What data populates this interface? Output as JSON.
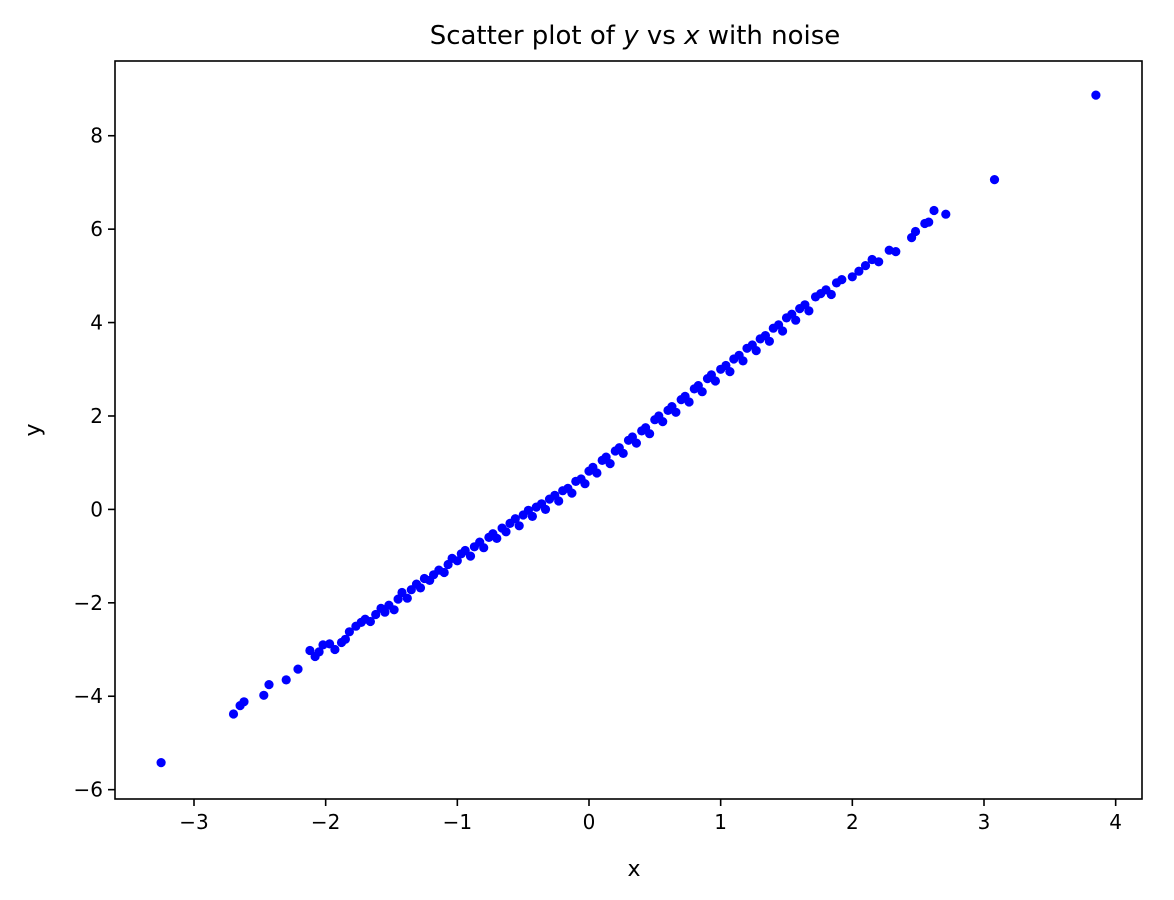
{
  "chart_data": {
    "type": "scatter",
    "title_parts": [
      {
        "text": "Scatter plot of ",
        "italic": false
      },
      {
        "text": "y",
        "italic": true
      },
      {
        "text": " vs ",
        "italic": false
      },
      {
        "text": "x",
        "italic": true
      },
      {
        "text": " with noise",
        "italic": false
      }
    ],
    "xlabel": "x",
    "ylabel": "y",
    "xlim": [
      -3.6,
      4.2
    ],
    "ylim": [
      -6.2,
      9.6
    ],
    "xticks": [
      -3,
      -2,
      -1,
      0,
      1,
      2,
      3,
      4
    ],
    "xtick_labels": [
      "−3",
      "−2",
      "−1",
      "0",
      "1",
      "2",
      "3",
      "4"
    ],
    "yticks": [
      -6,
      -4,
      -2,
      0,
      2,
      4,
      6,
      8
    ],
    "ytick_labels": [
      "−6",
      "−4",
      "−2",
      "0",
      "2",
      "4",
      "6",
      "8"
    ],
    "grid": false,
    "legend": "none",
    "marker_color": "#0000ff",
    "series": [
      {
        "points": [
          [
            -3.25,
            -5.42
          ],
          [
            -2.7,
            -4.38
          ],
          [
            -2.65,
            -4.2
          ],
          [
            -2.62,
            -4.12
          ],
          [
            -2.47,
            -3.98
          ],
          [
            -2.43,
            -3.75
          ],
          [
            -2.3,
            -3.65
          ],
          [
            -2.21,
            -3.42
          ],
          [
            -2.12,
            -3.02
          ],
          [
            -2.08,
            -3.15
          ],
          [
            -2.05,
            -3.05
          ],
          [
            -2.02,
            -2.9
          ],
          [
            -1.97,
            -2.88
          ],
          [
            -1.93,
            -3.0
          ],
          [
            -1.88,
            -2.85
          ],
          [
            -1.85,
            -2.78
          ],
          [
            -1.82,
            -2.62
          ],
          [
            -1.77,
            -2.5
          ],
          [
            -1.73,
            -2.42
          ],
          [
            -1.7,
            -2.35
          ],
          [
            -1.66,
            -2.4
          ],
          [
            -1.62,
            -2.25
          ],
          [
            -1.58,
            -2.12
          ],
          [
            -1.55,
            -2.2
          ],
          [
            -1.52,
            -2.05
          ],
          [
            -1.48,
            -2.15
          ],
          [
            -1.45,
            -1.92
          ],
          [
            -1.42,
            -1.78
          ],
          [
            -1.38,
            -1.9
          ],
          [
            -1.35,
            -1.72
          ],
          [
            -1.31,
            -1.6
          ],
          [
            -1.28,
            -1.68
          ],
          [
            -1.25,
            -1.48
          ],
          [
            -1.21,
            -1.52
          ],
          [
            -1.18,
            -1.4
          ],
          [
            -1.14,
            -1.3
          ],
          [
            -1.1,
            -1.35
          ],
          [
            -1.07,
            -1.18
          ],
          [
            -1.04,
            -1.05
          ],
          [
            -1.0,
            -1.1
          ],
          [
            -0.97,
            -0.95
          ],
          [
            -0.94,
            -0.88
          ],
          [
            -0.9,
            -1.0
          ],
          [
            -0.87,
            -0.8
          ],
          [
            -0.83,
            -0.7
          ],
          [
            -0.8,
            -0.82
          ],
          [
            -0.76,
            -0.6
          ],
          [
            -0.73,
            -0.52
          ],
          [
            -0.7,
            -0.62
          ],
          [
            -0.66,
            -0.4
          ],
          [
            -0.63,
            -0.48
          ],
          [
            -0.6,
            -0.3
          ],
          [
            -0.56,
            -0.2
          ],
          [
            -0.53,
            -0.35
          ],
          [
            -0.5,
            -0.12
          ],
          [
            -0.46,
            -0.02
          ],
          [
            -0.43,
            -0.15
          ],
          [
            -0.4,
            0.05
          ],
          [
            -0.36,
            0.12
          ],
          [
            -0.33,
            0.0
          ],
          [
            -0.3,
            0.22
          ],
          [
            -0.26,
            0.3
          ],
          [
            -0.23,
            0.18
          ],
          [
            -0.2,
            0.4
          ],
          [
            -0.16,
            0.45
          ],
          [
            -0.13,
            0.35
          ],
          [
            -0.1,
            0.6
          ],
          [
            -0.06,
            0.65
          ],
          [
            -0.03,
            0.55
          ],
          [
            0.0,
            0.82
          ],
          [
            0.03,
            0.9
          ],
          [
            0.06,
            0.78
          ],
          [
            0.1,
            1.05
          ],
          [
            0.13,
            1.12
          ],
          [
            0.16,
            0.98
          ],
          [
            0.2,
            1.25
          ],
          [
            0.23,
            1.32
          ],
          [
            0.26,
            1.2
          ],
          [
            0.3,
            1.48
          ],
          [
            0.33,
            1.55
          ],
          [
            0.36,
            1.42
          ],
          [
            0.4,
            1.68
          ],
          [
            0.43,
            1.75
          ],
          [
            0.46,
            1.62
          ],
          [
            0.5,
            1.92
          ],
          [
            0.53,
            2.0
          ],
          [
            0.56,
            1.88
          ],
          [
            0.6,
            2.12
          ],
          [
            0.63,
            2.2
          ],
          [
            0.66,
            2.08
          ],
          [
            0.7,
            2.35
          ],
          [
            0.73,
            2.42
          ],
          [
            0.76,
            2.3
          ],
          [
            0.8,
            2.58
          ],
          [
            0.83,
            2.65
          ],
          [
            0.86,
            2.52
          ],
          [
            0.9,
            2.8
          ],
          [
            0.93,
            2.88
          ],
          [
            0.96,
            2.75
          ],
          [
            1.0,
            3.0
          ],
          [
            1.04,
            3.08
          ],
          [
            1.07,
            2.95
          ],
          [
            1.1,
            3.22
          ],
          [
            1.14,
            3.3
          ],
          [
            1.17,
            3.18
          ],
          [
            1.2,
            3.45
          ],
          [
            1.24,
            3.52
          ],
          [
            1.27,
            3.4
          ],
          [
            1.3,
            3.65
          ],
          [
            1.34,
            3.72
          ],
          [
            1.37,
            3.6
          ],
          [
            1.4,
            3.88
          ],
          [
            1.44,
            3.95
          ],
          [
            1.47,
            3.82
          ],
          [
            1.5,
            4.1
          ],
          [
            1.54,
            4.18
          ],
          [
            1.57,
            4.05
          ],
          [
            1.6,
            4.3
          ],
          [
            1.64,
            4.38
          ],
          [
            1.67,
            4.25
          ],
          [
            1.72,
            4.55
          ],
          [
            1.76,
            4.62
          ],
          [
            1.8,
            4.7
          ],
          [
            1.84,
            4.6
          ],
          [
            1.88,
            4.85
          ],
          [
            1.92,
            4.92
          ],
          [
            2.0,
            4.98
          ],
          [
            2.05,
            5.1
          ],
          [
            2.1,
            5.22
          ],
          [
            2.15,
            5.35
          ],
          [
            2.2,
            5.3
          ],
          [
            2.28,
            5.55
          ],
          [
            2.33,
            5.52
          ],
          [
            2.45,
            5.82
          ],
          [
            2.48,
            5.95
          ],
          [
            2.55,
            6.12
          ],
          [
            2.58,
            6.15
          ],
          [
            2.62,
            6.4
          ],
          [
            2.71,
            6.32
          ],
          [
            3.08,
            7.06
          ],
          [
            3.85,
            8.87
          ]
        ]
      }
    ]
  }
}
